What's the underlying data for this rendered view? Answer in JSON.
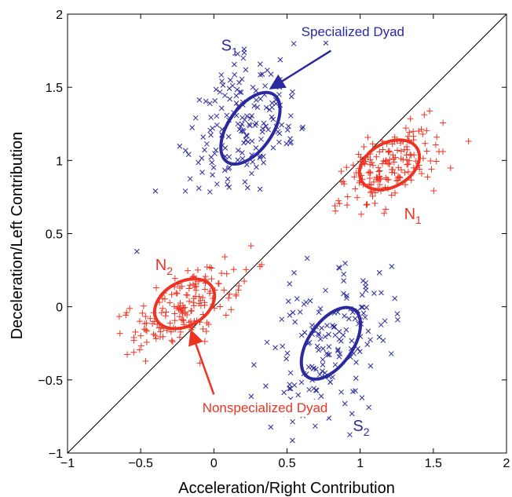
{
  "chart_data": {
    "type": "scatter",
    "title": "",
    "xlabel": "Acceleration/Right Contribution",
    "ylabel": "Deceleration/Left Contribution",
    "xlim": [
      -1,
      2
    ],
    "ylim": [
      -1,
      2
    ],
    "xticks": [
      -1,
      -0.5,
      0,
      0.5,
      1,
      1.5,
      2
    ],
    "yticks": [
      -1,
      -0.5,
      0,
      0.5,
      1,
      1.5,
      2
    ],
    "xtick_labels": [
      "−1",
      "−0.5",
      "0",
      "0.5",
      "1",
      "1.5",
      "2"
    ],
    "ytick_labels": [
      "−1",
      "−0.5",
      "0",
      "0.5",
      "1",
      "1.5",
      "2"
    ],
    "grid": false,
    "diagonal_line": {
      "from": [
        -1,
        -1
      ],
      "to": [
        2,
        2
      ],
      "color": "#000000"
    },
    "colors": {
      "specialized": "#2a2a9e",
      "nonspecialized": "#ee3322"
    },
    "clusters": [
      {
        "id": "S1",
        "label_main": "S",
        "label_sub": "1",
        "series": "specialized",
        "marker": "x",
        "mean": [
          0.2,
          1.25
        ],
        "spread": [
          0.28,
          0.2
        ],
        "n": 170,
        "ellipse": {
          "center": [
            0.25,
            1.22
          ],
          "rx": 0.28,
          "ry": 0.15,
          "angle_deg": -55
        },
        "label_pos": [
          0.05,
          1.75
        ]
      },
      {
        "id": "S2",
        "label_main": "S",
        "label_sub": "2",
        "series": "specialized",
        "marker": "x",
        "mean": [
          0.8,
          -0.25
        ],
        "spread": [
          0.28,
          0.2
        ],
        "n": 170,
        "ellipse": {
          "center": [
            0.8,
            -0.25
          ],
          "rx": 0.28,
          "ry": 0.15,
          "angle_deg": -55
        },
        "label_pos": [
          0.95,
          -0.85
        ]
      },
      {
        "id": "N1",
        "label_main": "N",
        "label_sub": "1",
        "series": "nonspecialized",
        "marker": "+",
        "mean": [
          1.2,
          0.95
        ],
        "spread": [
          0.2,
          0.1
        ],
        "n": 170,
        "ellipse": {
          "center": [
            1.2,
            0.97
          ],
          "rx": 0.22,
          "ry": 0.15,
          "angle_deg": -30
        },
        "label_pos": [
          1.3,
          0.6
        ]
      },
      {
        "id": "N2",
        "label_main": "N",
        "label_sub": "2",
        "series": "nonspecialized",
        "marker": "+",
        "mean": [
          -0.2,
          0.0
        ],
        "spread": [
          0.2,
          0.1
        ],
        "n": 170,
        "ellipse": {
          "center": [
            -0.2,
            0.02
          ],
          "rx": 0.22,
          "ry": 0.15,
          "angle_deg": -30
        },
        "label_pos": [
          -0.4,
          0.25
        ]
      }
    ],
    "annotations": [
      {
        "id": "specialized-dyad",
        "text": "Specialized Dyad",
        "series": "specialized",
        "text_pos": [
          0.95,
          1.85
        ],
        "arrow_from": [
          0.8,
          1.75
        ],
        "arrow_to": [
          0.4,
          1.5
        ]
      },
      {
        "id": "nonspecialized-dyad",
        "text": "Nonspecialized Dyad",
        "series": "nonspecialized",
        "text_pos": [
          0.35,
          -0.72
        ],
        "arrow_from": [
          0.0,
          -0.6
        ],
        "arrow_to": [
          -0.15,
          -0.18
        ]
      }
    ]
  }
}
